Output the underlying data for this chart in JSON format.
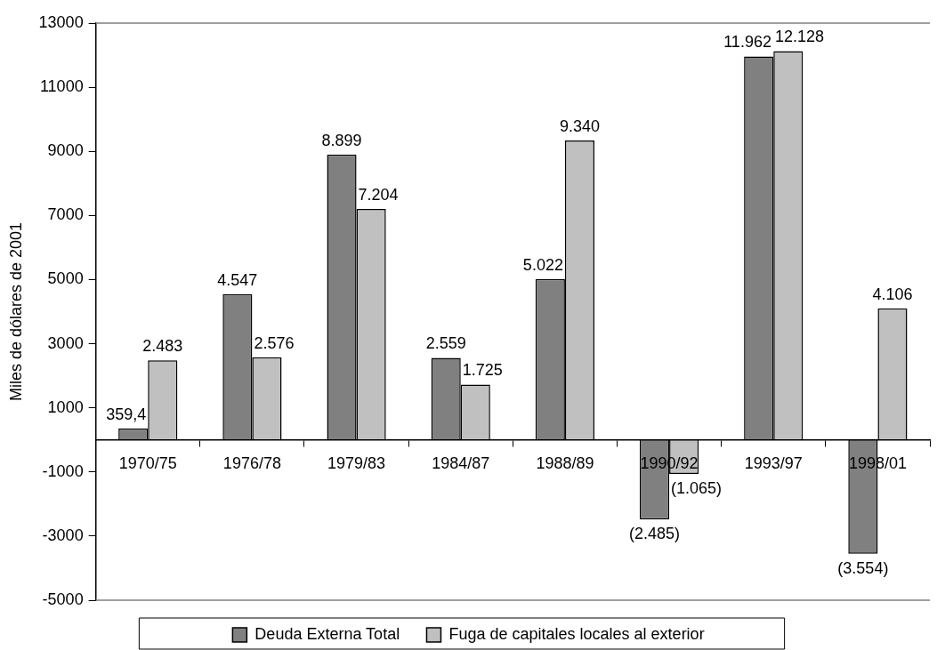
{
  "chart_data": {
    "type": "bar",
    "ylabel": "Miles de dólares de 2001",
    "categories": [
      "1970/75",
      "1976/78",
      "1979/83",
      "1984/87",
      "1988/89",
      "1990/92",
      "1993/97",
      "1998/01"
    ],
    "series": [
      {
        "name": "Deuda Externa Total",
        "color": "#808080",
        "values": [
          359.4,
          4547,
          8899,
          2559,
          5022,
          -2485,
          11962,
          -3554
        ],
        "value_labels": [
          "359,4",
          "4.547",
          "8.899",
          "2.559",
          "5.022",
          "(2.485)",
          "11.962",
          "(3.554)"
        ]
      },
      {
        "name": "Fuga de capitales locales al exterior",
        "color": "#c0c0c0",
        "values": [
          2483,
          2576,
          7204,
          1725,
          9340,
          -1065,
          12128,
          4106
        ],
        "value_labels": [
          "2.483",
          "2.576",
          "7.204",
          "1.725",
          "9.340",
          "(1.065)",
          "12.128",
          "4.106"
        ]
      }
    ],
    "ylim": [
      -5000,
      13000
    ],
    "yticks": [
      -5000,
      -3000,
      -1000,
      1000,
      3000,
      5000,
      7000,
      9000,
      11000,
      13000
    ],
    "legend": "bottom"
  }
}
